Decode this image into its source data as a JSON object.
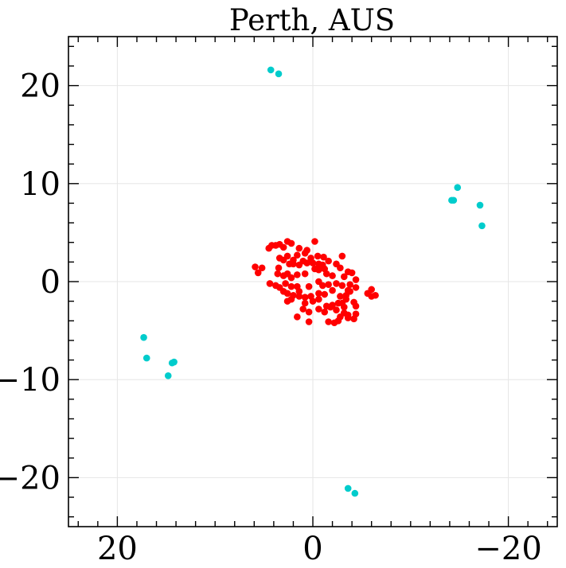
{
  "chart_data": {
    "type": "scatter",
    "title": "Perth, AUS",
    "xlabel": "",
    "ylabel": "",
    "xlim": [
      25,
      -25
    ],
    "ylim": [
      -25,
      25
    ],
    "x_ticks": [
      20,
      0,
      -20
    ],
    "x_tick_labels": [
      "20",
      "0",
      "−20"
    ],
    "y_ticks": [
      20,
      10,
      0,
      -10,
      -20
    ],
    "y_tick_labels": [
      "20",
      "10",
      "0",
      "−10",
      "−20"
    ],
    "grid": true,
    "legend": "none",
    "series": [
      {
        "color": "#00cccc",
        "points": [
          [
            4.3,
            21.6
          ],
          [
            3.5,
            21.2
          ],
          [
            -14.4,
            8.3
          ],
          [
            -14.2,
            8.3
          ],
          [
            -14.8,
            9.6
          ],
          [
            -17.1,
            7.8
          ],
          [
            -17.3,
            5.7
          ],
          [
            17.3,
            -5.7
          ],
          [
            17.0,
            -7.8
          ],
          [
            14.4,
            -8.3
          ],
          [
            14.2,
            -8.2
          ],
          [
            14.8,
            -9.6
          ],
          [
            -3.6,
            -21.1
          ],
          [
            -4.3,
            -21.6
          ]
        ]
      },
      {
        "color": "#ff0000",
        "points": [
          [
            4.5,
            3.4
          ],
          [
            4.2,
            3.7
          ],
          [
            3.8,
            3.7
          ],
          [
            3.4,
            3.8
          ],
          [
            3.0,
            3.5
          ],
          [
            2.6,
            4.1
          ],
          [
            2.2,
            3.9
          ],
          [
            1.4,
            3.4
          ],
          [
            0.6,
            3.2
          ],
          [
            -0.2,
            4.1
          ],
          [
            5.9,
            1.5
          ],
          [
            5.6,
            0.9
          ],
          [
            5.2,
            1.4
          ],
          [
            3.4,
            2.4
          ],
          [
            3.0,
            2.2
          ],
          [
            2.6,
            2.6
          ],
          [
            2.0,
            2.2
          ],
          [
            1.6,
            2.7
          ],
          [
            0.8,
            2.9
          ],
          [
            0.2,
            2.4
          ],
          [
            -0.5,
            2.6
          ],
          [
            -1.1,
            2.5
          ],
          [
            -1.6,
            2.1
          ],
          [
            3.5,
            1.4
          ],
          [
            2.4,
            1.8
          ],
          [
            2.0,
            1.8
          ],
          [
            1.4,
            1.7
          ],
          [
            1.0,
            2.1
          ],
          [
            0.6,
            1.9
          ],
          [
            0.0,
            1.9
          ],
          [
            -0.6,
            1.8
          ],
          [
            -1.0,
            1.7
          ],
          [
            -2.4,
            1.8
          ],
          [
            -2.8,
            1.4
          ],
          [
            -3.0,
            2.6
          ],
          [
            -4.0,
            0.9
          ],
          [
            -3.6,
            1.0
          ],
          [
            3.6,
            0.8
          ],
          [
            3.0,
            0.6
          ],
          [
            2.6,
            0.8
          ],
          [
            2.2,
            0.4
          ],
          [
            1.6,
            0.7
          ],
          [
            0.8,
            0.8
          ],
          [
            -0.2,
            1.3
          ],
          [
            -0.6,
            1.2
          ],
          [
            -1.2,
            1.3
          ],
          [
            -1.4,
            0.8
          ],
          [
            -2.0,
            0.6
          ],
          [
            -3.2,
            0.5
          ],
          [
            -3.8,
            -0.3
          ],
          [
            -4.4,
            0.2
          ],
          [
            4.4,
            -0.2
          ],
          [
            3.8,
            -0.4
          ],
          [
            3.4,
            -0.6
          ],
          [
            2.8,
            -0.2
          ],
          [
            2.2,
            -0.5
          ],
          [
            1.6,
            -0.5
          ],
          [
            0.4,
            -0.5
          ],
          [
            -0.6,
            0.0
          ],
          [
            -1.0,
            -0.4
          ],
          [
            -1.6,
            -0.3
          ],
          [
            -2.4,
            -0.2
          ],
          [
            -3.0,
            -0.4
          ],
          [
            -3.6,
            -0.9
          ],
          [
            -4.4,
            -0.6
          ],
          [
            3.0,
            -1.0
          ],
          [
            2.6,
            -1.2
          ],
          [
            2.0,
            -1.4
          ],
          [
            1.4,
            -1.0
          ],
          [
            0.8,
            -1.6
          ],
          [
            0.2,
            -1.5
          ],
          [
            -0.6,
            -1.2
          ],
          [
            -1.2,
            -1.3
          ],
          [
            -2.0,
            -0.9
          ],
          [
            -2.8,
            -1.5
          ],
          [
            -3.4,
            -1.4
          ],
          [
            -3.8,
            -1.0
          ],
          [
            -5.6,
            -1.2
          ],
          [
            -6.0,
            -0.8
          ],
          [
            -6.4,
            -1.4
          ],
          [
            -6.0,
            -1.5
          ],
          [
            2.6,
            -2.0
          ],
          [
            2.2,
            -1.8
          ],
          [
            1.4,
            -1.5
          ],
          [
            0.8,
            -2.2
          ],
          [
            0.0,
            -2.0
          ],
          [
            -0.6,
            -1.8
          ],
          [
            -1.4,
            -2.5
          ],
          [
            -2.0,
            -2.4
          ],
          [
            -2.6,
            -2.2
          ],
          [
            -3.0,
            -2.2
          ],
          [
            -3.4,
            -1.8
          ],
          [
            -4.2,
            -2.1
          ],
          [
            -4.4,
            -2.5
          ],
          [
            1.0,
            -2.8
          ],
          [
            0.4,
            -3.1
          ],
          [
            -0.6,
            -2.8
          ],
          [
            -1.2,
            -3.1
          ],
          [
            -1.8,
            -2.6
          ],
          [
            -2.4,
            -2.9
          ],
          [
            -3.2,
            -2.6
          ],
          [
            -2.8,
            -3.6
          ],
          [
            -3.2,
            -3.2
          ],
          [
            -3.6,
            -3.4
          ],
          [
            -4.2,
            -3.8
          ],
          [
            -4.4,
            -3.3
          ],
          [
            1.6,
            -3.6
          ],
          [
            0.4,
            -4.1
          ],
          [
            -1.6,
            -4.1
          ],
          [
            -2.2,
            -4.2
          ],
          [
            -2.6,
            -4.0
          ],
          [
            -3.6,
            -3.7
          ]
        ]
      }
    ]
  }
}
